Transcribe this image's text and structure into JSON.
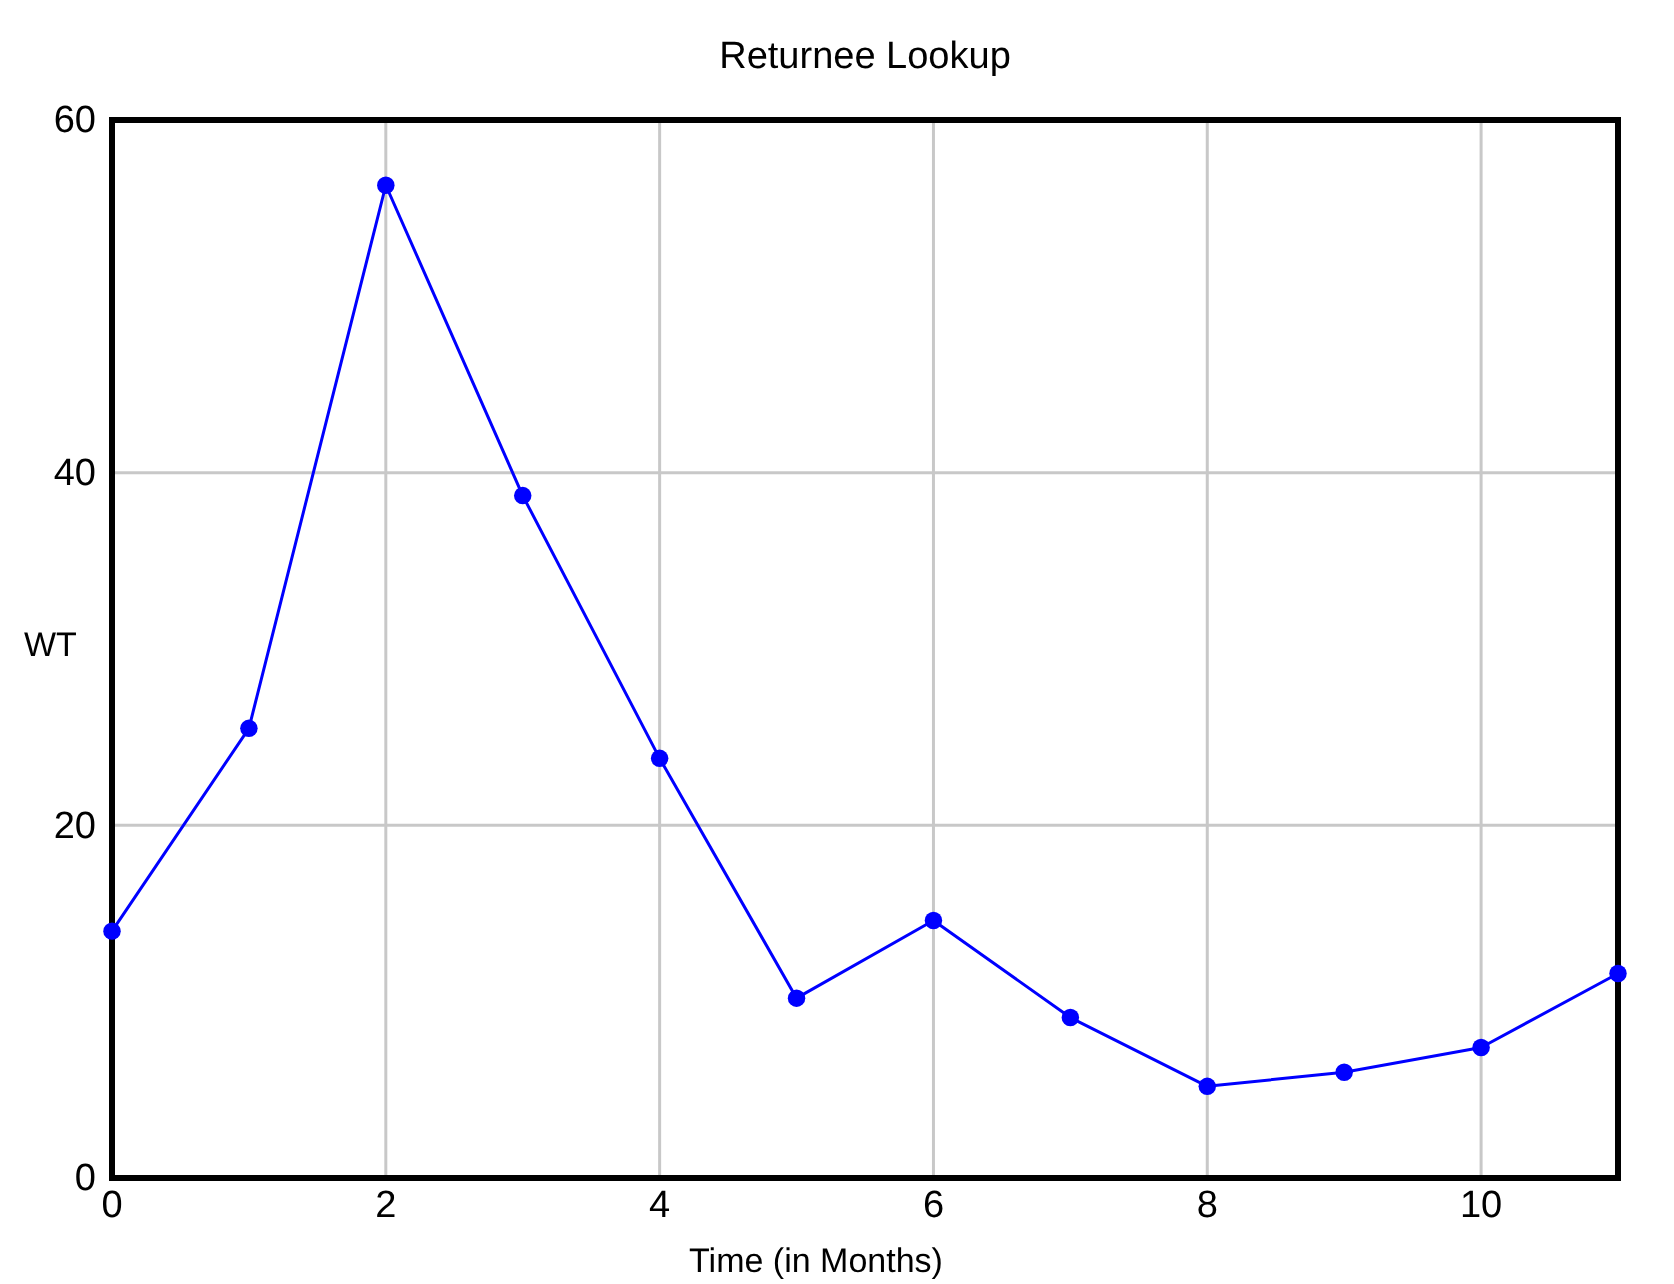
{
  "chart_data": {
    "type": "line",
    "title": "Returnee Lookup",
    "xlabel": "Time (in Months)",
    "ylabel": "WT",
    "x": [
      0,
      1,
      2,
      3,
      4,
      5,
      6,
      7,
      8,
      9,
      10,
      11
    ],
    "series": [
      {
        "color": "#0000ff",
        "values": [
          14,
          25.5,
          56.3,
          38.7,
          23.8,
          10.2,
          14.6,
          9.1,
          5.2,
          6.0,
          7.4,
          11.6
        ]
      }
    ],
    "xlim": [
      0,
      11
    ],
    "xticks": [
      0,
      2,
      4,
      6,
      8,
      10
    ],
    "ylim": [
      0,
      60
    ],
    "yticks": [
      0,
      20,
      40,
      60
    ],
    "grid": true,
    "marker": "circle",
    "line_style": "solid"
  }
}
